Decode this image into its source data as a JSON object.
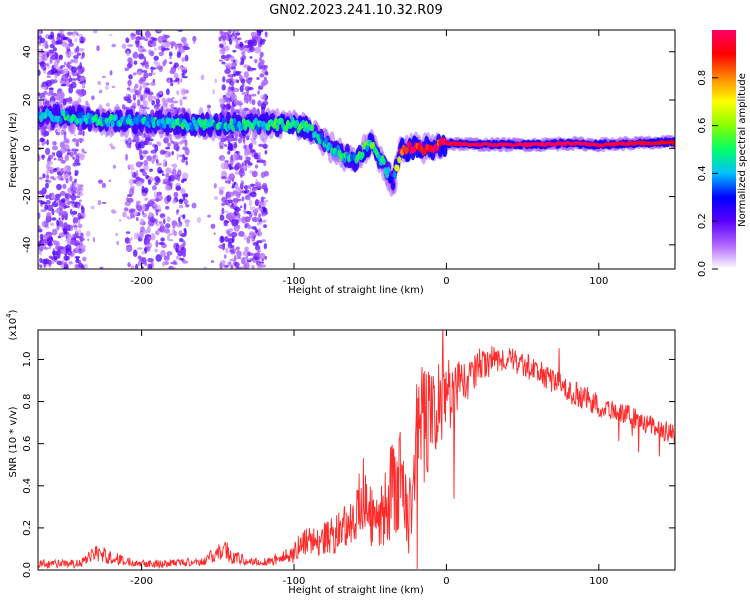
{
  "title": "GN02.2023.241.10.32.R09",
  "chart_data": [
    {
      "type": "heatmap",
      "xlabel": "Height of straight line (km)",
      "ylabel": "Frequency (Hz)",
      "xlim": [
        -268,
        150
      ],
      "ylim": [
        -50,
        49
      ],
      "xticks": [
        "-200",
        "-100",
        "0",
        "100"
      ],
      "xtick_values": [
        -200,
        -100,
        0,
        100
      ],
      "yticks": [
        "40",
        "20",
        "0",
        "-20",
        "-40"
      ],
      "ytick_values": [
        40,
        20,
        0,
        -20,
        -40
      ],
      "colorbar": {
        "label": "Normalized spectral amplitude",
        "ticks": [
          "0.0",
          "0.2",
          "0.4",
          "0.6",
          "0.8"
        ],
        "tick_values": [
          0.0,
          0.2,
          0.4,
          0.6,
          0.8
        ],
        "range": [
          0,
          1
        ],
        "colors": [
          "#ffffff",
          "#b066ff",
          "#5a00ff",
          "#0000ff",
          "#00c0ff",
          "#00ff66",
          "#88ff00",
          "#ffff00",
          "#ff8800",
          "#ff0000",
          "#ff0066"
        ]
      },
      "ridge": {
        "x": [
          -268,
          -250,
          -230,
          -210,
          -190,
          -170,
          -150,
          -130,
          -110,
          -100,
          -90,
          -80,
          -70,
          -60,
          -50,
          -40,
          -35,
          -30,
          -20,
          -10,
          0,
          20,
          40,
          60,
          80,
          100,
          120,
          150
        ],
        "y": [
          14,
          13,
          12,
          11,
          11,
          10,
          10,
          10,
          10,
          10,
          8,
          2,
          -2,
          -5,
          2,
          -8,
          -15,
          -1,
          0,
          0,
          2,
          1.5,
          1.5,
          1.5,
          2,
          1.5,
          2,
          2.5
        ],
        "amplitude": [
          0.35,
          0.4,
          0.4,
          0.4,
          0.38,
          0.4,
          0.4,
          0.4,
          0.42,
          0.45,
          0.42,
          0.35,
          0.4,
          0.4,
          0.45,
          0.4,
          0.3,
          0.9,
          0.92,
          0.92,
          0.95,
          0.98,
          0.98,
          0.98,
          0.98,
          0.97,
          0.95,
          0.9
        ]
      },
      "noise_bands_x": [
        [
          -268,
          -238
        ],
        [
          -210,
          -170
        ],
        [
          -148,
          -118
        ]
      ]
    },
    {
      "type": "line",
      "xlabel": "Height of straight line (km)",
      "ylabel": "SNR (10 * v/v)",
      "y_multiplier": "(x10",
      "y_multiplier_exp": "4",
      "y_multiplier_close": ")",
      "xlim": [
        -268,
        150
      ],
      "ylim": [
        0,
        1.14
      ],
      "xticks": [
        "-200",
        "-100",
        "0",
        "100"
      ],
      "xtick_values": [
        -200,
        -100,
        0,
        100
      ],
      "yticks": [
        "0.0",
        "0.2",
        "0.4",
        "0.6",
        "0.8",
        "1.0"
      ],
      "ytick_values": [
        0.0,
        0.2,
        0.4,
        0.6,
        0.8,
        1.0
      ],
      "color": "#ff2a2a",
      "x": [
        -268,
        -240,
        -230,
        -220,
        -210,
        -190,
        -160,
        -150,
        -145,
        -140,
        -130,
        -120,
        -110,
        -100,
        -95,
        -90,
        -80,
        -70,
        -60,
        -55,
        -50,
        -45,
        -40,
        -35,
        -30,
        -25,
        -20,
        -15,
        -10,
        -5,
        0,
        10,
        20,
        30,
        40,
        50,
        60,
        70,
        80,
        90,
        100,
        110,
        120,
        130,
        140,
        150
      ],
      "y": [
        0.03,
        0.03,
        0.08,
        0.06,
        0.04,
        0.03,
        0.04,
        0.08,
        0.1,
        0.06,
        0.04,
        0.04,
        0.05,
        0.08,
        0.13,
        0.14,
        0.15,
        0.18,
        0.25,
        0.35,
        0.25,
        0.22,
        0.3,
        0.4,
        0.45,
        0.2,
        0.6,
        0.7,
        0.75,
        0.78,
        0.82,
        0.88,
        0.95,
        1.0,
        1.0,
        0.98,
        0.94,
        0.9,
        0.85,
        0.82,
        0.78,
        0.76,
        0.73,
        0.7,
        0.67,
        0.64
      ],
      "noise_amp": [
        0.02,
        0.02,
        0.04,
        0.04,
        0.02,
        0.02,
        0.02,
        0.04,
        0.05,
        0.04,
        0.02,
        0.02,
        0.03,
        0.05,
        0.06,
        0.07,
        0.08,
        0.1,
        0.12,
        0.2,
        0.15,
        0.14,
        0.2,
        0.25,
        0.25,
        0.15,
        0.3,
        0.3,
        0.25,
        0.2,
        0.18,
        0.12,
        0.08,
        0.07,
        0.06,
        0.06,
        0.06,
        0.06,
        0.06,
        0.06,
        0.06,
        0.05,
        0.05,
        0.05,
        0.05,
        0.05
      ]
    }
  ]
}
